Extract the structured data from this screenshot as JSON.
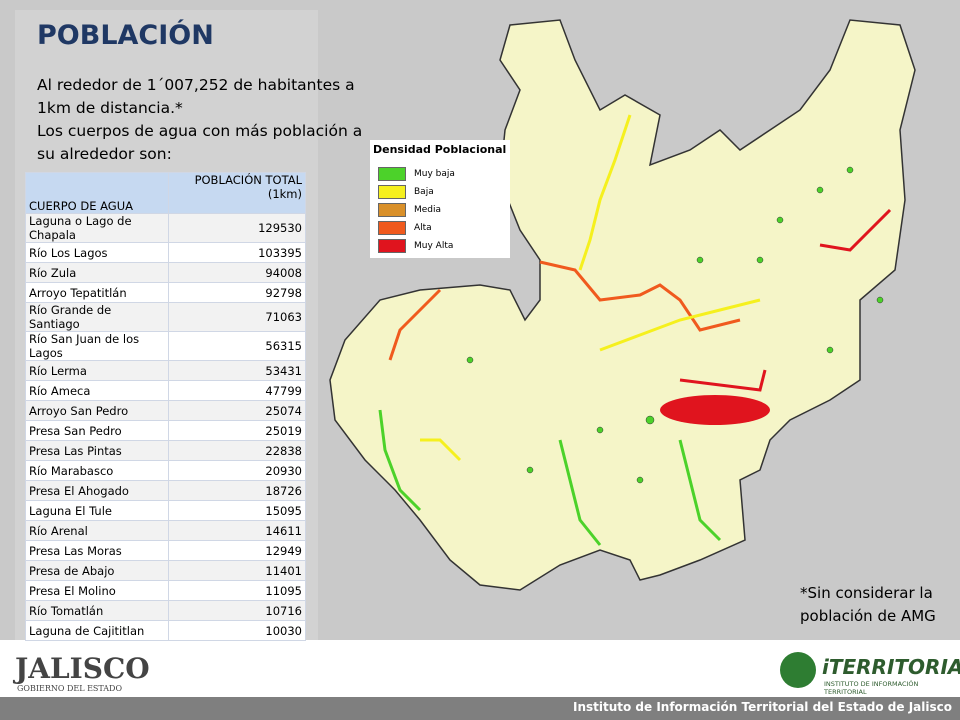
{
  "title": "POBLACIÓN",
  "intro": [
    "Al rededor de 1´007,252 de habitantes a 1km de distancia.*",
    "Los cuerpos de agua con más población a su alrededor son:"
  ],
  "table": {
    "header": [
      "CUERPO DE AGUA",
      "POBLACIÓN TOTAL (1km)"
    ],
    "rows": [
      [
        "Laguna o Lago de Chapala",
        129530
      ],
      [
        "Río Los Lagos",
        103395
      ],
      [
        "Río Zula",
        94008
      ],
      [
        "Arroyo Tepatitlán",
        92798
      ],
      [
        "Río Grande de Santiago",
        71063
      ],
      [
        "Río San Juan de los Lagos",
        56315
      ],
      [
        "Río Lerma",
        53431
      ],
      [
        "Río Ameca",
        47799
      ],
      [
        "Arroyo San Pedro",
        25074
      ],
      [
        "Presa San Pedro",
        25019
      ],
      [
        "Presa Las Pintas",
        22838
      ],
      [
        "Río Marabasco",
        20930
      ],
      [
        "Presa El Ahogado",
        18726
      ],
      [
        "Laguna El Tule",
        15095
      ],
      [
        "Río Arenal",
        14611
      ],
      [
        "Presa Las Moras",
        12949
      ],
      [
        "Presa de Abajo",
        11401
      ],
      [
        "Presa El Molino",
        11095
      ],
      [
        "Río Tomatlán",
        10716
      ],
      [
        "Laguna de Cajititlan",
        10030
      ]
    ]
  },
  "legend": {
    "title": "Densidad Poblacional",
    "items": [
      {
        "label": "Muy baja",
        "color": "#4cd22a"
      },
      {
        "label": "Baja",
        "color": "#f5f01e"
      },
      {
        "label": "Media",
        "color": "#d9902a"
      },
      {
        "label": "Alta",
        "color": "#f05a1e"
      },
      {
        "label": "Muy Alta",
        "color": "#e0141e"
      }
    ]
  },
  "footnote": "*Sin considerar la población de AMG",
  "logos": {
    "left": [
      "JALISCO",
      "GOBIERNO DEL ESTADO"
    ],
    "right": [
      "iTERRITORIAL",
      "INSTITUTO DE INFORMACIÓN TERRITORIAL"
    ]
  },
  "footer": "Instituto de Información Territorial del Estado de Jalisco"
}
